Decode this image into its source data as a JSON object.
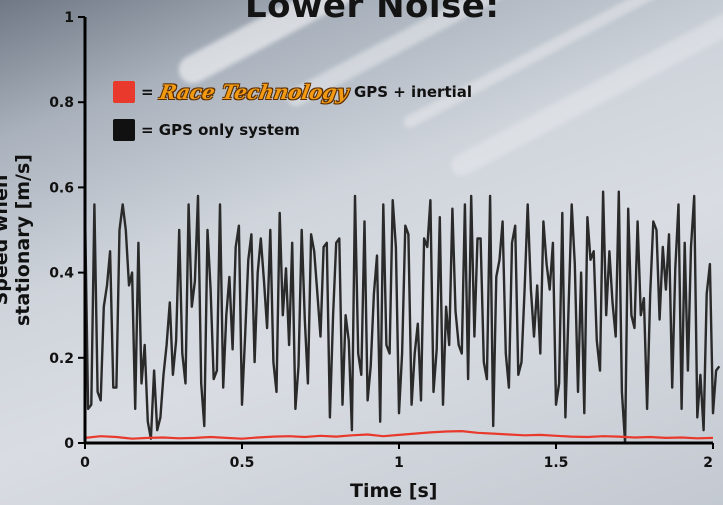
{
  "slide": {
    "title": "Lower Noise:",
    "legend": {
      "item1_prefix": "=",
      "item1_brand": "Race Technology",
      "item1_suffix": "GPS + inertial",
      "item2_label": "= GPS only system"
    }
  },
  "colors": {
    "gps_inertial": "#e8392c",
    "gps_only": "#111111",
    "series_line_gps_only": "#2a2a2a",
    "axis": "#000000"
  },
  "chart_data": {
    "type": "line",
    "title": "Lower Noise:",
    "xlabel": "Time [s]",
    "ylabel": "Speed when stationary [m/s]",
    "xlim": [
      0,
      2
    ],
    "ylim": [
      0,
      1
    ],
    "x_ticks": [
      "0",
      "0.5",
      "1",
      "1.5",
      "2"
    ],
    "y_ticks": [
      "0",
      "0.2",
      "0.4",
      "0.6",
      "0.8",
      "1"
    ],
    "grid": false,
    "legend_position": "top-left",
    "series": [
      {
        "name": "GPS only system",
        "x_start": 0,
        "x_step": 0.01,
        "values": [
          0.55,
          0.08,
          0.09,
          0.56,
          0.12,
          0.1,
          0.32,
          0.37,
          0.45,
          0.13,
          0.13,
          0.5,
          0.56,
          0.5,
          0.37,
          0.4,
          0.08,
          0.47,
          0.14,
          0.23,
          0.05,
          0.01,
          0.17,
          0.03,
          0.06,
          0.16,
          0.23,
          0.33,
          0.16,
          0.24,
          0.5,
          0.21,
          0.14,
          0.56,
          0.32,
          0.38,
          0.58,
          0.14,
          0.04,
          0.5,
          0.36,
          0.15,
          0.17,
          0.56,
          0.13,
          0.3,
          0.39,
          0.22,
          0.46,
          0.51,
          0.09,
          0.25,
          0.43,
          0.49,
          0.19,
          0.4,
          0.48,
          0.38,
          0.27,
          0.5,
          0.19,
          0.12,
          0.54,
          0.3,
          0.41,
          0.23,
          0.47,
          0.08,
          0.18,
          0.5,
          0.29,
          0.14,
          0.49,
          0.45,
          0.35,
          0.25,
          0.46,
          0.47,
          0.06,
          0.3,
          0.47,
          0.48,
          0.09,
          0.3,
          0.24,
          0.03,
          0.58,
          0.21,
          0.16,
          0.52,
          0.1,
          0.18,
          0.35,
          0.44,
          0.05,
          0.56,
          0.23,
          0.21,
          0.57,
          0.46,
          0.07,
          0.21,
          0.51,
          0.49,
          0.09,
          0.21,
          0.28,
          0.1,
          0.48,
          0.46,
          0.57,
          0.12,
          0.22,
          0.53,
          0.09,
          0.32,
          0.23,
          0.55,
          0.31,
          0.23,
          0.21,
          0.56,
          0.15,
          0.58,
          0.25,
          0.48,
          0.48,
          0.19,
          0.15,
          0.58,
          0.04,
          0.39,
          0.43,
          0.52,
          0.21,
          0.13,
          0.47,
          0.51,
          0.16,
          0.19,
          0.36,
          0.56,
          0.36,
          0.25,
          0.37,
          0.21,
          0.52,
          0.42,
          0.36,
          0.47,
          0.09,
          0.14,
          0.54,
          0.06,
          0.32,
          0.56,
          0.42,
          0.12,
          0.4,
          0.07,
          0.53,
          0.43,
          0.45,
          0.24,
          0.17,
          0.59,
          0.3,
          0.45,
          0.33,
          0.25,
          0.59,
          0.12,
          0.0,
          0.55,
          0.3,
          0.27,
          0.52,
          0.3,
          0.34,
          0.08,
          0.35,
          0.52,
          0.5,
          0.29,
          0.46,
          0.36,
          0.49,
          0.13,
          0.41,
          0.56,
          0.08,
          0.47,
          0.17,
          0.46,
          0.58,
          0.06,
          0.16,
          0.03,
          0.35,
          0.42,
          0.07,
          0.17,
          0.18
        ]
      },
      {
        "name": "Race Technology GPS + inertial",
        "x_start": 0,
        "x_step": 0.05,
        "values": [
          0.012,
          0.016,
          0.014,
          0.01,
          0.012,
          0.013,
          0.011,
          0.012,
          0.014,
          0.012,
          0.01,
          0.013,
          0.015,
          0.016,
          0.014,
          0.017,
          0.015,
          0.018,
          0.02,
          0.016,
          0.019,
          0.022,
          0.025,
          0.027,
          0.028,
          0.024,
          0.022,
          0.02,
          0.018,
          0.019,
          0.017,
          0.015,
          0.014,
          0.016,
          0.015,
          0.013,
          0.014,
          0.012,
          0.013,
          0.011,
          0.012
        ]
      }
    ]
  }
}
